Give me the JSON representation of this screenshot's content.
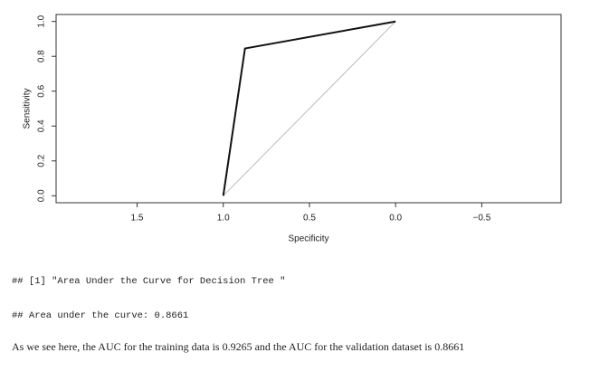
{
  "chart_data": {
    "type": "line",
    "xlabel": "Specificity",
    "ylabel": "Sensitivity",
    "xlim": [
      1.97,
      -0.96
    ],
    "ylim": [
      -0.04,
      1.04
    ],
    "xticks": [
      1.5,
      {
        "value": 1,
        "label": "1.0"
      },
      0.5,
      {
        "value": 0,
        "label": "0.0"
      },
      {
        "value": -0.5,
        "label": "−0.5"
      }
    ],
    "yticks": [
      {
        "value": 0,
        "label": "0.0"
      },
      0.2,
      0.4,
      0.6,
      0.8,
      {
        "value": 1,
        "label": "1.0"
      }
    ],
    "series": [
      {
        "x": [
          1,
          0.874,
          0
        ],
        "values": [
          0,
          0.845,
          1
        ],
        "color": "#111111"
      }
    ],
    "diagonal": {
      "x": [
        1,
        0
      ],
      "values": [
        0,
        1
      ],
      "color": "#bbbbbb"
    }
  },
  "document": {
    "output_1": "## [1] \"Area Under the Curve for Decision Tree \"",
    "output_2": "## Area under the curve: 0.8661",
    "paragraph": "As we see here, the AUC for the training data is 0.9265 and the AUC for the validation dataset is 0.8661"
  }
}
